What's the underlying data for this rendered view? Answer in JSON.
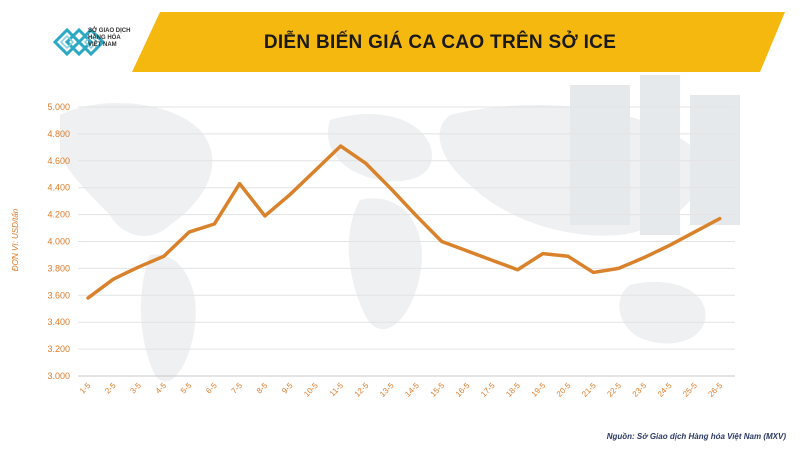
{
  "header": {
    "title": "DIỄN BIẾN GIÁ CA CAO TRÊN SỞ ICE",
    "logo_lines": [
      "SỞ GIAO DỊCH",
      "HÀNG HÓA",
      "VIỆT NAM"
    ]
  },
  "source": "Nguồn: Sở Giao dịch Hàng hóa Việt Nam (MXV)",
  "colors": {
    "accent": "#f5b80f",
    "line": "#d9822b",
    "axis_text": "#e07b2a"
  },
  "chart_data": {
    "type": "line",
    "ylabel": "ĐƠN VỊ: USD/tấn",
    "ylim": [
      3000,
      5000
    ],
    "yticks": [
      3000,
      3200,
      3400,
      3600,
      3800,
      4000,
      4200,
      4400,
      4600,
      4800,
      5000
    ],
    "ytick_labels": [
      "3.000",
      "3.200",
      "3.400",
      "3.600",
      "3.800",
      "4.000",
      "4.200",
      "4.400",
      "4.600",
      "4.800",
      "5.000"
    ],
    "categories": [
      "1-5",
      "2-5",
      "3-5",
      "4-5",
      "5-5",
      "6-5",
      "7-5",
      "8-5",
      "9-5",
      "10-5",
      "11-5",
      "12-5",
      "13-5",
      "14-5",
      "15-5",
      "16-5",
      "17-5",
      "18-5",
      "19-5",
      "20-5",
      "21-5",
      "22-5",
      "23-5",
      "24-5",
      "25-5",
      "26-5"
    ],
    "series": [
      {
        "values": [
          3580,
          3720,
          3810,
          3890,
          4070,
          4130,
          4430,
          4190,
          4350,
          4530,
          4710,
          4580,
          4390,
          4190,
          4000,
          3930,
          3860,
          3790,
          3910,
          3890,
          3770,
          3800,
          3880,
          3970,
          4070,
          4170
        ]
      }
    ],
    "grid": true
  }
}
